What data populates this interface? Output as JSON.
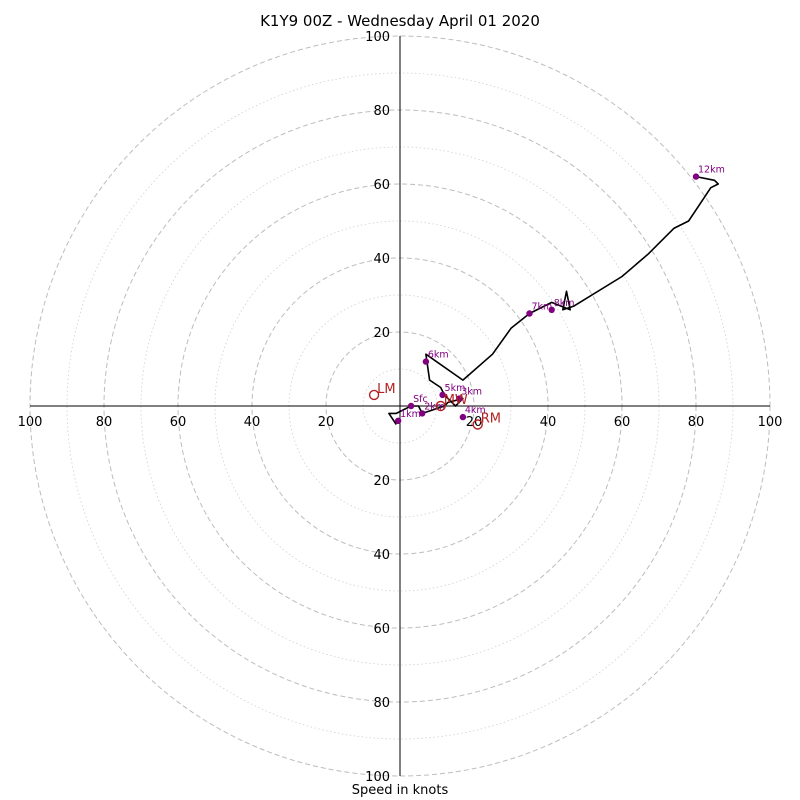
{
  "chart_data": {
    "type": "line",
    "title": "K1Y9 00Z - Wednesday April 01 2020",
    "xlabel": "Speed in knots",
    "ylabel": "",
    "grid": true,
    "range": [
      -100,
      100
    ],
    "ring_values": [
      10,
      20,
      30,
      40,
      50,
      60,
      70,
      80,
      90,
      100
    ],
    "labeled_rings": [
      20,
      40,
      60,
      80,
      100
    ],
    "tick_labels": [
      "20",
      "40",
      "60",
      "80",
      "100"
    ],
    "colors": {
      "hodograph": "#000000",
      "height_points": "#800080",
      "motion": "#b22222",
      "ring_major": "#bdbdbd",
      "ring_minor": "#d0d0d0"
    },
    "hodograph": {
      "name": "",
      "x": [
        -1,
        -3,
        -1,
        3,
        5,
        6,
        9,
        12,
        13,
        17,
        16,
        15,
        14,
        12,
        11,
        8,
        7,
        17,
        25,
        30,
        35,
        41,
        46,
        45,
        44,
        47,
        60,
        67,
        74,
        78,
        80,
        84,
        86,
        85,
        80
      ],
      "y": [
        -5,
        -2,
        -2,
        0,
        0,
        -2,
        -1,
        0,
        1,
        2,
        1,
        0,
        1,
        3,
        5,
        7,
        14,
        7,
        14,
        21,
        25,
        28,
        26,
        31,
        26,
        27,
        35,
        41,
        48,
        50,
        53,
        59,
        60,
        61,
        62
      ]
    },
    "height_points": [
      {
        "label": "Sfc",
        "x": 3,
        "y": 0
      },
      {
        "label": "1km",
        "x": -0.5,
        "y": -4
      },
      {
        "label": "2km",
        "x": 6,
        "y": -2
      },
      {
        "label": "3km",
        "x": 16,
        "y": 2
      },
      {
        "label": "4km",
        "x": 17,
        "y": -3
      },
      {
        "label": "5km",
        "x": 11.5,
        "y": 3
      },
      {
        "label": "6km",
        "x": 7,
        "y": 12
      },
      {
        "label": "7km",
        "x": 35,
        "y": 25
      },
      {
        "label": "8km",
        "x": 41,
        "y": 26
      },
      {
        "label": "12km",
        "x": 80,
        "y": 62
      }
    ],
    "motion_points": [
      {
        "label": "LM",
        "x": -7,
        "y": 3
      },
      {
        "label": "MW",
        "x": 11,
        "y": 0
      },
      {
        "label": "RM",
        "x": 21,
        "y": -5
      }
    ]
  }
}
